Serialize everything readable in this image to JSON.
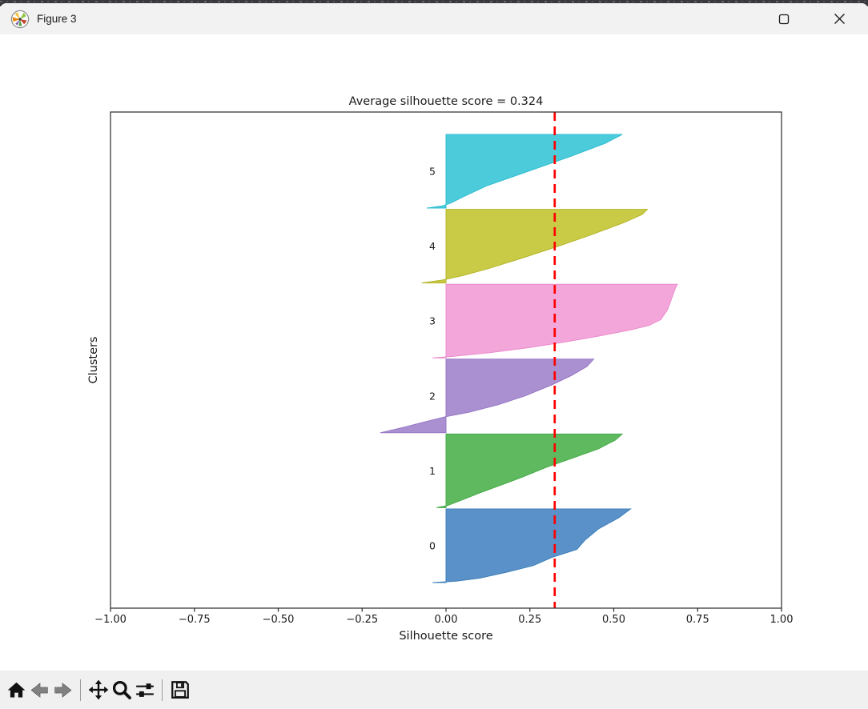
{
  "window": {
    "title": "Figure 3",
    "controls": {
      "minimize": "minimize",
      "maximize": "maximize",
      "close": "close"
    }
  },
  "toolbar": {
    "buttons": [
      {
        "name": "home",
        "disabled": false
      },
      {
        "name": "back",
        "disabled": true
      },
      {
        "name": "forward",
        "disabled": true
      },
      {
        "name": "pan",
        "disabled": false
      },
      {
        "name": "zoom",
        "disabled": false
      },
      {
        "name": "configure-subplots",
        "disabled": false
      },
      {
        "name": "save",
        "disabled": false
      }
    ]
  },
  "chart_data": {
    "type": "area",
    "subtype": "silhouette-plot",
    "title": "Average silhouette score = 0.324",
    "xlabel": "Silhouette score",
    "ylabel": "Clusters",
    "xlim": [
      -1,
      1
    ],
    "grid": false,
    "x_ticks": [
      {
        "v": -1.0,
        "label": "−1.00"
      },
      {
        "v": -0.75,
        "label": "−0.75"
      },
      {
        "v": -0.5,
        "label": "−0.50"
      },
      {
        "v": -0.25,
        "label": "−0.25"
      },
      {
        "v": 0.0,
        "label": "0.00"
      },
      {
        "v": 0.25,
        "label": "0.25"
      },
      {
        "v": 0.5,
        "label": "0.50"
      },
      {
        "v": 0.75,
        "label": "0.75"
      },
      {
        "v": 1.0,
        "label": "1.00"
      }
    ],
    "average_score": 0.324,
    "average_line": {
      "color": "#ff0000",
      "style": "dashed"
    },
    "clusters": [
      {
        "label": "5",
        "color": "#4ccbdb",
        "stroke": "#30bed1",
        "max": 0.53,
        "min": -0.06,
        "profile": [
          [
            0,
            0.525
          ],
          [
            0.12,
            0.475
          ],
          [
            0.3,
            0.37
          ],
          [
            0.5,
            0.245
          ],
          [
            0.7,
            0.12
          ],
          [
            0.85,
            0.05
          ],
          [
            0.93,
            0.015
          ],
          [
            0.97,
            -0.01
          ],
          [
            1,
            -0.057
          ]
        ]
      },
      {
        "label": "4",
        "color": "#c9ca45",
        "stroke": "#b5b62c",
        "max": 0.6,
        "min": -0.07,
        "profile": [
          [
            0,
            0.6
          ],
          [
            0.07,
            0.585
          ],
          [
            0.18,
            0.53
          ],
          [
            0.35,
            0.43
          ],
          [
            0.5,
            0.335
          ],
          [
            0.65,
            0.235
          ],
          [
            0.8,
            0.13
          ],
          [
            0.9,
            0.05
          ],
          [
            0.96,
            -0.01
          ],
          [
            1,
            -0.072
          ]
        ]
      },
      {
        "label": "3",
        "color": "#f3a6d9",
        "stroke": "#ec8ccc",
        "max": 0.69,
        "min": -0.04,
        "profile": [
          [
            0,
            0.69
          ],
          [
            0.06,
            0.683
          ],
          [
            0.2,
            0.672
          ],
          [
            0.35,
            0.66
          ],
          [
            0.48,
            0.64
          ],
          [
            0.56,
            0.605
          ],
          [
            0.62,
            0.55
          ],
          [
            0.7,
            0.46
          ],
          [
            0.78,
            0.36
          ],
          [
            0.86,
            0.25
          ],
          [
            0.93,
            0.13
          ],
          [
            0.98,
            0.02
          ],
          [
            1,
            -0.04
          ]
        ]
      },
      {
        "label": "2",
        "color": "#aa90d1",
        "stroke": "#9878c6",
        "max": 0.44,
        "min": -0.2,
        "profile": [
          [
            0,
            0.44
          ],
          [
            0.1,
            0.42
          ],
          [
            0.22,
            0.375
          ],
          [
            0.35,
            0.315
          ],
          [
            0.5,
            0.235
          ],
          [
            0.62,
            0.155
          ],
          [
            0.72,
            0.07
          ],
          [
            0.78,
            0
          ],
          [
            0.86,
            -0.07
          ],
          [
            0.93,
            -0.13
          ],
          [
            1,
            -0.196
          ]
        ]
      },
      {
        "label": "1",
        "color": "#5eb95f",
        "stroke": "#47ab49",
        "max": 0.53,
        "min": -0.03,
        "profile": [
          [
            0,
            0.525
          ],
          [
            0.08,
            0.505
          ],
          [
            0.2,
            0.455
          ],
          [
            0.33,
            0.375
          ],
          [
            0.45,
            0.3
          ],
          [
            0.58,
            0.23
          ],
          [
            0.7,
            0.16
          ],
          [
            0.8,
            0.1
          ],
          [
            0.9,
            0.045
          ],
          [
            0.97,
            0.005
          ],
          [
            1,
            -0.028
          ]
        ]
      },
      {
        "label": "0",
        "color": "#5991c8",
        "stroke": "#3f7fba",
        "max": 0.55,
        "min": -0.04,
        "profile": [
          [
            0,
            0.55
          ],
          [
            0.12,
            0.515
          ],
          [
            0.27,
            0.455
          ],
          [
            0.42,
            0.415
          ],
          [
            0.55,
            0.39
          ],
          [
            0.66,
            0.315
          ],
          [
            0.77,
            0.26
          ],
          [
            0.86,
            0.18
          ],
          [
            0.94,
            0.1
          ],
          [
            0.98,
            0.03
          ],
          [
            1,
            -0.04
          ]
        ]
      }
    ]
  }
}
